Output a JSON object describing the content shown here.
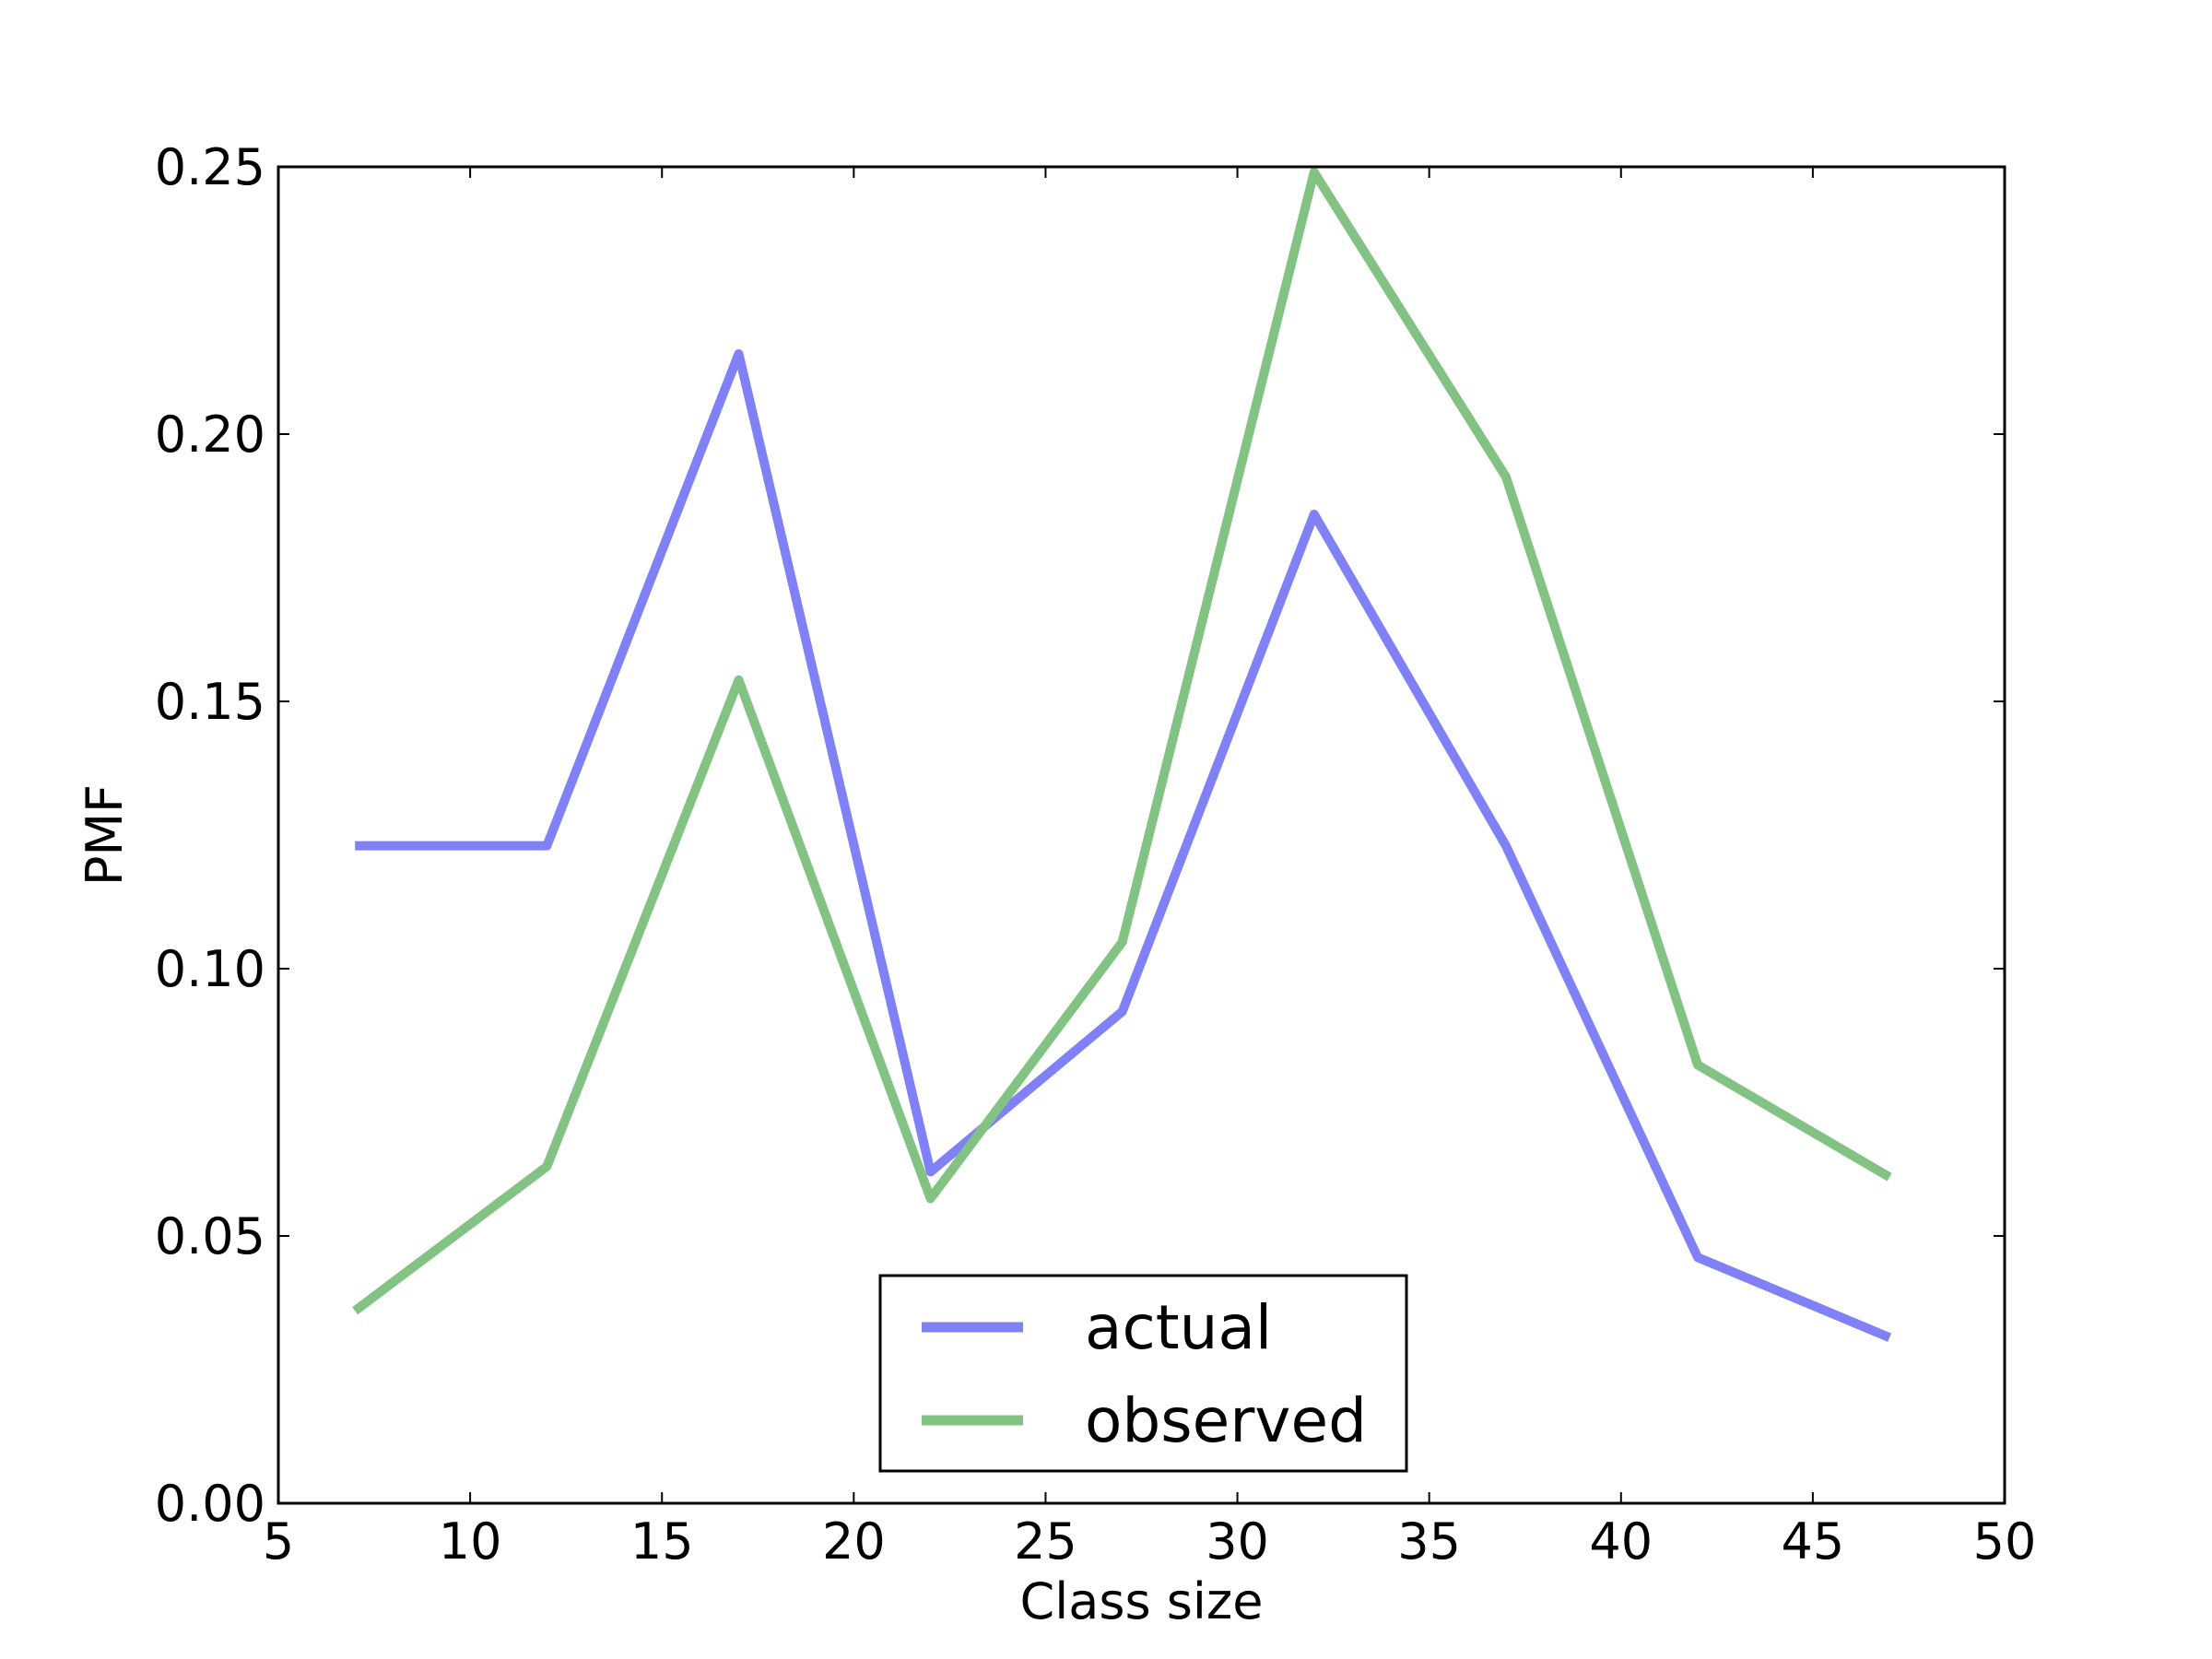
{
  "chart_data": {
    "type": "line",
    "title": "",
    "xlabel": "Class size",
    "ylabel": "PMF",
    "xlim": [
      5,
      50
    ],
    "ylim": [
      0,
      0.25
    ],
    "x_ticks": [
      "5",
      "10",
      "15",
      "20",
      "25",
      "30",
      "35",
      "40",
      "45",
      "50"
    ],
    "y_ticks": [
      "0.00",
      "0.05",
      "0.10",
      "0.15",
      "0.20",
      "0.25"
    ],
    "grid": false,
    "legend_position": "lower-center",
    "series": [
      {
        "name": "actual",
        "color": "#8080f7",
        "x": [
          7,
          12,
          17,
          22,
          27,
          32,
          37,
          42,
          47
        ],
        "y": [
          0.123,
          0.123,
          0.215,
          0.062,
          0.092,
          0.185,
          0.123,
          0.046,
          0.031
        ]
      },
      {
        "name": "observed",
        "color": "#82c282",
        "x": [
          7,
          12,
          17,
          22,
          27,
          32,
          37,
          42,
          47
        ],
        "y": [
          0.036,
          0.063,
          0.154,
          0.057,
          0.105,
          0.249,
          0.192,
          0.082,
          0.061
        ]
      }
    ]
  }
}
